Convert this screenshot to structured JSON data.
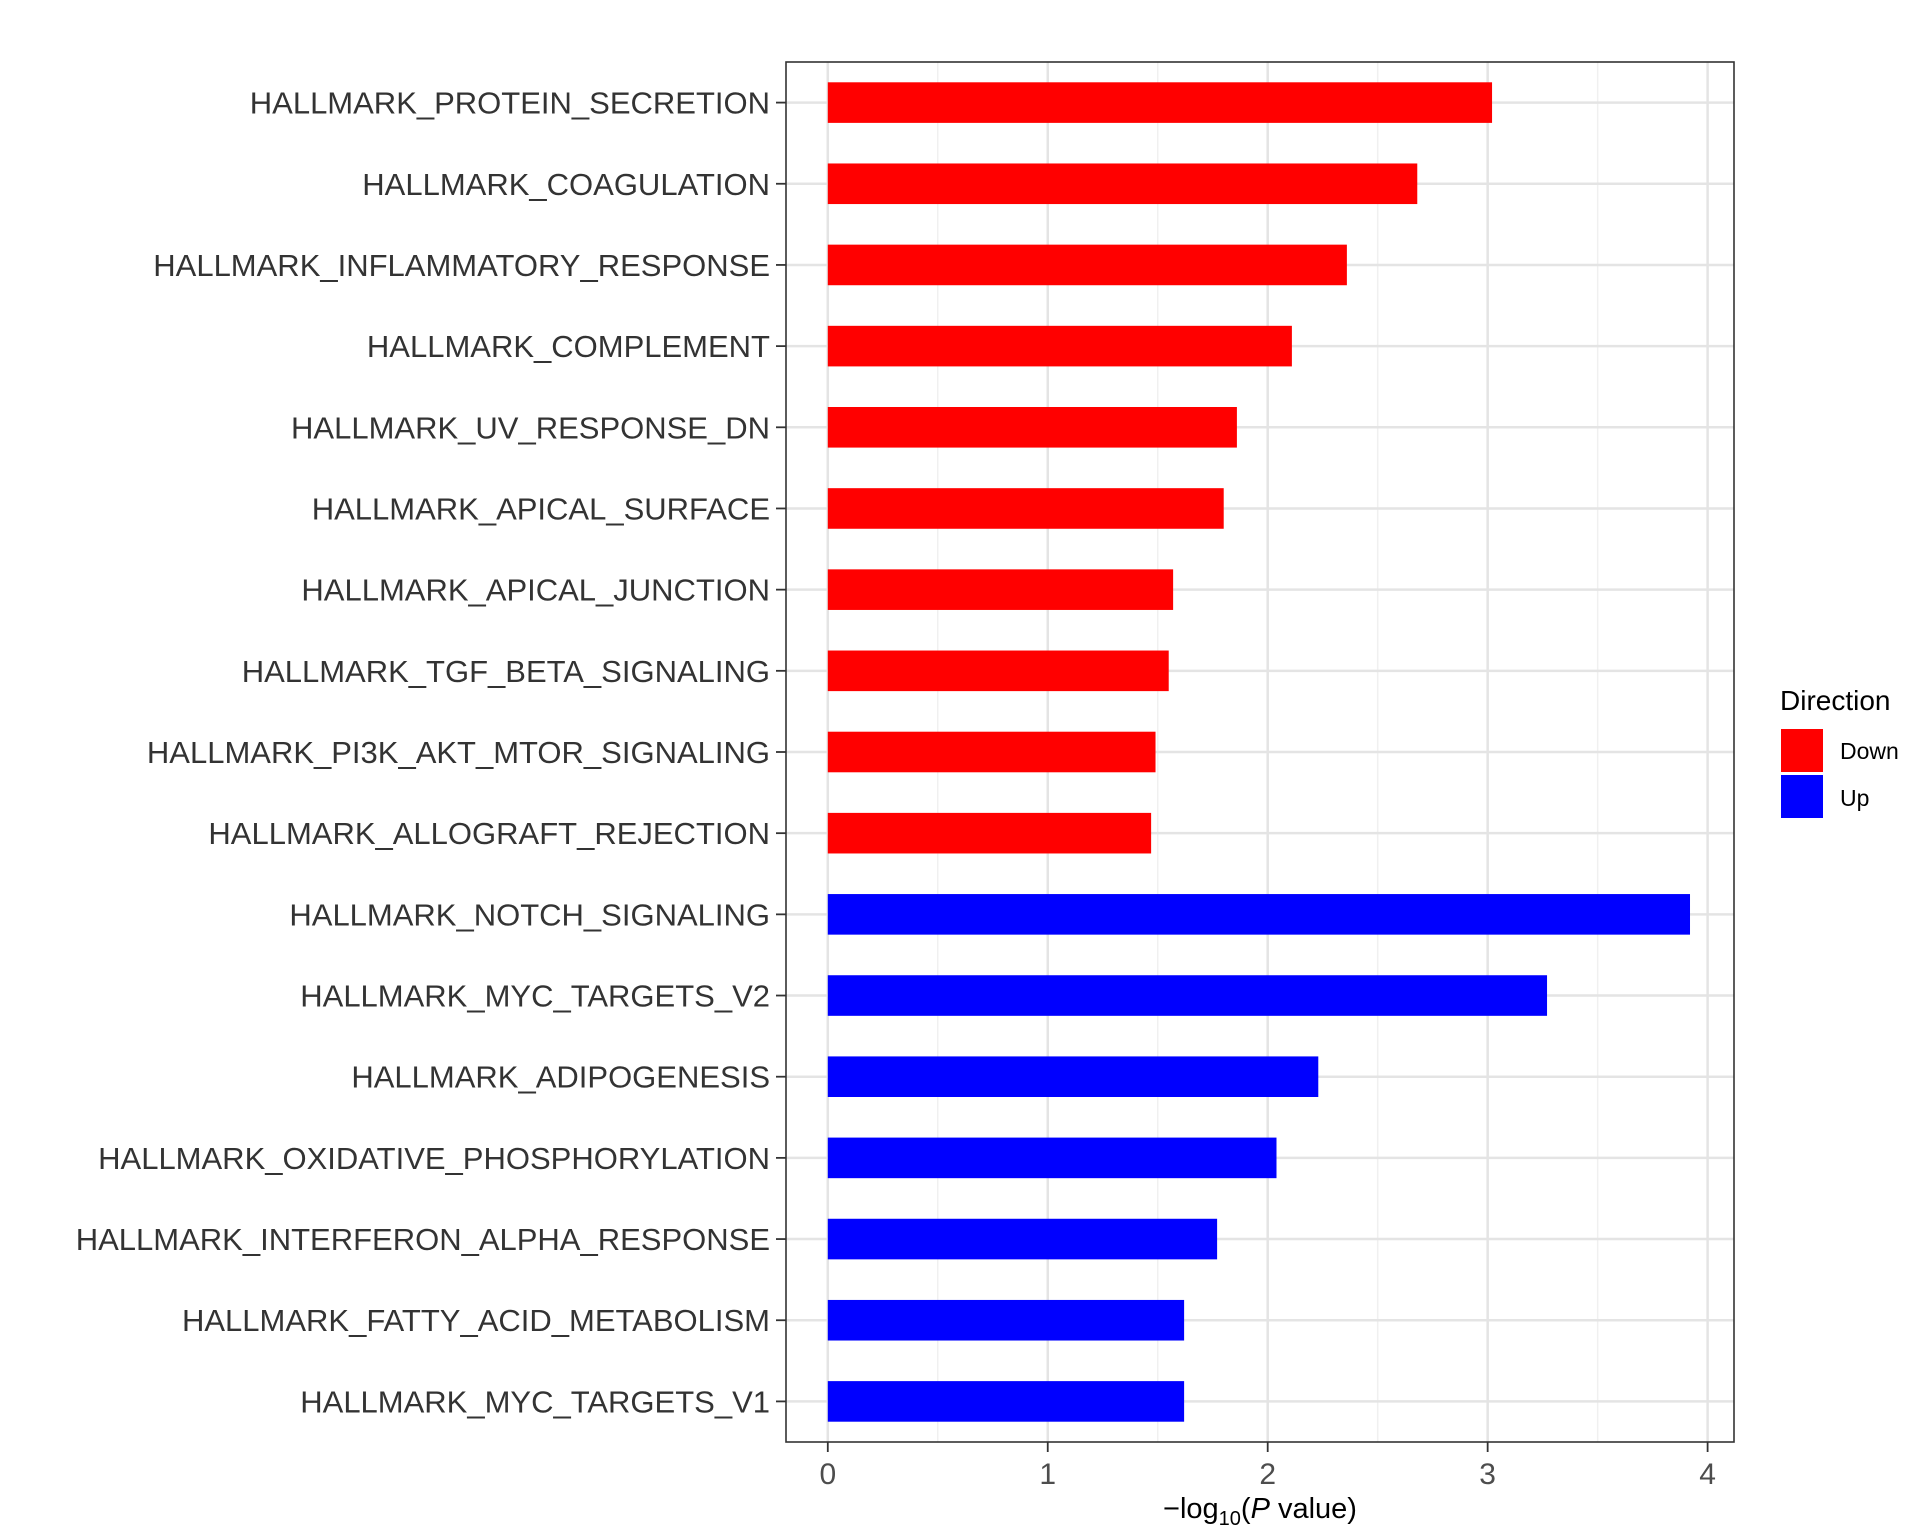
{
  "chart_data": {
    "type": "bar",
    "orientation": "horizontal",
    "categories": [
      "HALLMARK_PROTEIN_SECRETION",
      "HALLMARK_COAGULATION",
      "HALLMARK_INFLAMMATORY_RESPONSE",
      "HALLMARK_COMPLEMENT",
      "HALLMARK_UV_RESPONSE_DN",
      "HALLMARK_APICAL_SURFACE",
      "HALLMARK_APICAL_JUNCTION",
      "HALLMARK_TGF_BETA_SIGNALING",
      "HALLMARK_PI3K_AKT_MTOR_SIGNALING",
      "HALLMARK_ALLOGRAFT_REJECTION",
      "HALLMARK_NOTCH_SIGNALING",
      "HALLMARK_MYC_TARGETS_V2",
      "HALLMARK_ADIPOGENESIS",
      "HALLMARK_OXIDATIVE_PHOSPHORYLATION",
      "HALLMARK_INTERFERON_ALPHA_RESPONSE",
      "HALLMARK_FATTY_ACID_METABOLISM",
      "HALLMARK_MYC_TARGETS_V1"
    ],
    "values": [
      3.02,
      2.68,
      2.36,
      2.11,
      1.86,
      1.8,
      1.57,
      1.55,
      1.49,
      1.47,
      3.92,
      3.27,
      2.23,
      2.04,
      1.77,
      1.62,
      1.62
    ],
    "direction": [
      "Down",
      "Down",
      "Down",
      "Down",
      "Down",
      "Down",
      "Down",
      "Down",
      "Down",
      "Down",
      "Up",
      "Up",
      "Up",
      "Up",
      "Up",
      "Up",
      "Up"
    ],
    "xlabel": {
      "prefix": "−log",
      "subscript": "10",
      "open": "(",
      "italic": "P",
      "suffix": " value)"
    },
    "xlim": [
      -0.19,
      4.12
    ],
    "xticks": [
      "0",
      "1",
      "2",
      "3",
      "4"
    ],
    "grid": true,
    "legend": {
      "title": "Direction",
      "position": "right",
      "entries": [
        {
          "name": "Down",
          "color": "#ff0000"
        },
        {
          "name": "Up",
          "color": "#0000ff"
        }
      ]
    }
  }
}
